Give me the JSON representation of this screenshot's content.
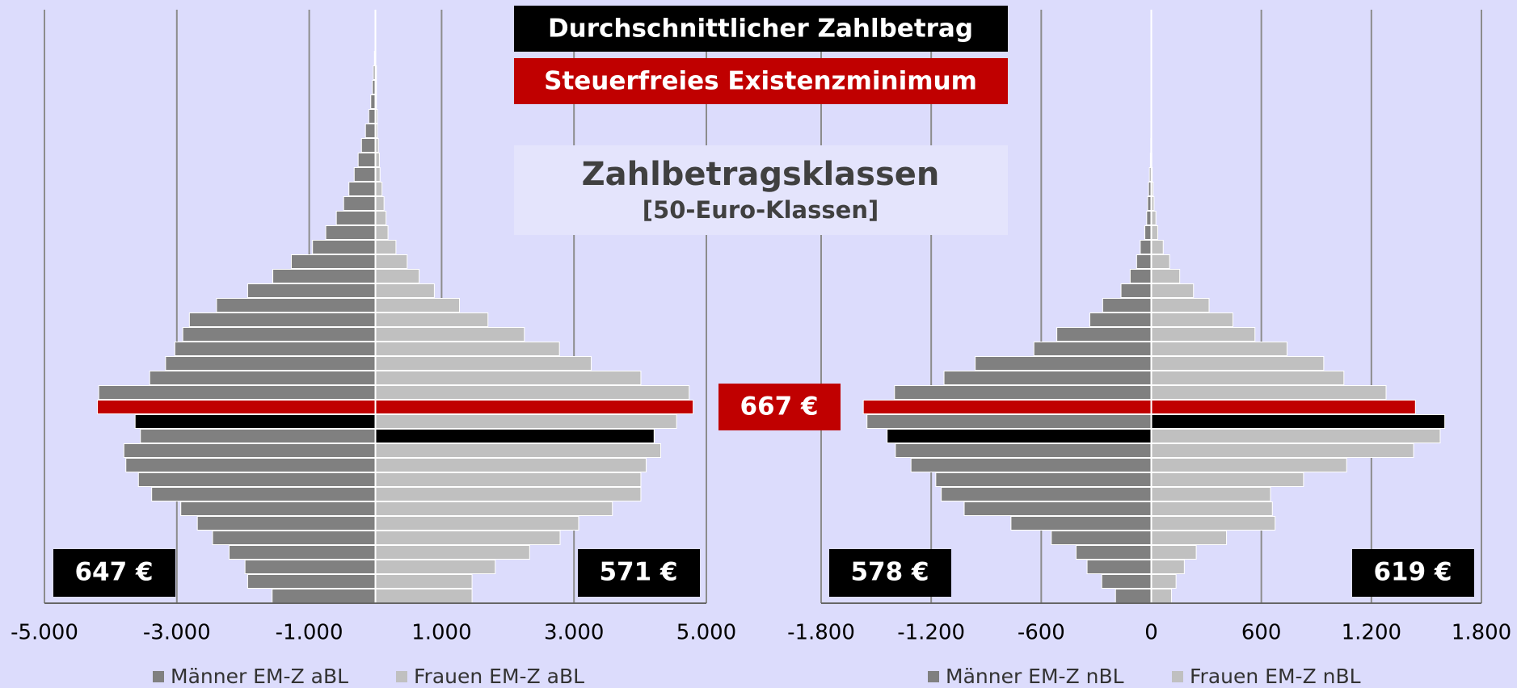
{
  "title": "Zahlbetragsklassen",
  "subtitle": "[50-Euro-Klassen]",
  "key_boxes": [
    {
      "label": "Durchschnittlicher Zahlbetrag",
      "color": "#000000"
    },
    {
      "label": "Steuerfreies Existenzminimum",
      "color": "#c00000"
    }
  ],
  "minimum_label": "667 €",
  "chart_data": [
    {
      "type": "bar",
      "orientation": "horizontal",
      "grid": true,
      "xlim": [
        -5000,
        5000
      ],
      "xticks": [
        {
          "value": -5000,
          "label": "-5.000"
        },
        {
          "value": -3000,
          "label": "-3.000"
        },
        {
          "value": -1000,
          "label": "-1.000"
        },
        {
          "value": 1000,
          "label": "1.000"
        },
        {
          "value": 3000,
          "label": "3.000"
        },
        {
          "value": 5000,
          "label": "5.000"
        }
      ],
      "annotations": [
        "647 €",
        "571 €"
      ],
      "series": [
        {
          "name": "Männer EM-Z aBL",
          "color": "#808080",
          "highlights": [
            {
              "index": 13,
              "color": "#c00000"
            },
            {
              "index": 12,
              "color": "#000000"
            }
          ],
          "values": [
            -1560,
            -1930,
            -1970,
            -2210,
            -2460,
            -2690,
            -2940,
            -3380,
            -3580,
            -3770,
            -3800,
            -3550,
            -3630,
            -4200,
            -4180,
            -3410,
            -3170,
            -3030,
            -2910,
            -2810,
            -2400,
            -1930,
            -1550,
            -1270,
            -950,
            -750,
            -590,
            -480,
            -400,
            -320,
            -260,
            -210,
            -150,
            -100,
            -70,
            -45,
            -30,
            -15
          ]
        },
        {
          "name": "Frauen EM-Z aBL",
          "color": "#c0c0c0",
          "highlights": [
            {
              "index": 13,
              "color": "#c00000"
            },
            {
              "index": 11,
              "color": "#000000"
            }
          ],
          "values": [
            1460,
            1460,
            1810,
            2330,
            2790,
            3070,
            3580,
            4010,
            4010,
            4090,
            4310,
            4210,
            4550,
            4800,
            4740,
            4010,
            3260,
            2780,
            2250,
            1700,
            1270,
            890,
            660,
            480,
            310,
            190,
            160,
            130,
            100,
            70,
            60,
            45,
            30,
            30,
            15,
            15,
            15,
            5
          ]
        }
      ]
    },
    {
      "type": "bar",
      "orientation": "horizontal",
      "grid": true,
      "xlim": [
        -1800,
        1800
      ],
      "xticks": [
        {
          "value": -1800,
          "label": "-1.800"
        },
        {
          "value": -1200,
          "label": "-1.200"
        },
        -600,
        0,
        600,
        {
          "value": 1200,
          "label": "1.200"
        },
        {
          "value": 1800,
          "label": "1.800"
        }
      ],
      "annotations": [
        "578 €",
        "619 €"
      ],
      "series": [
        {
          "name": "Männer EM-Z nBL",
          "color": "#808080",
          "highlights": [
            {
              "index": 13,
              "color": "#c00000"
            },
            {
              "index": 11,
              "color": "#000000"
            }
          ],
          "values": [
            -195,
            -270,
            -350,
            -410,
            -545,
            -765,
            -1020,
            -1145,
            -1175,
            -1310,
            -1395,
            -1440,
            -1550,
            -1570,
            -1400,
            -1130,
            -960,
            -640,
            -515,
            -335,
            -265,
            -165,
            -115,
            -80,
            -60,
            -35,
            -25,
            -20,
            -15,
            -10,
            -5,
            -3,
            -2,
            -2,
            -1,
            -1,
            -1,
            -1
          ]
        },
        {
          "name": "Frauen EM-Z nBL",
          "color": "#c0c0c0",
          "highlights": [
            {
              "index": 13,
              "color": "#c00000"
            },
            {
              "index": 12,
              "color": "#000000"
            }
          ],
          "values": [
            110,
            135,
            180,
            245,
            410,
            675,
            660,
            650,
            830,
            1065,
            1430,
            1575,
            1600,
            1440,
            1280,
            1050,
            940,
            740,
            565,
            445,
            315,
            230,
            155,
            100,
            65,
            35,
            25,
            15,
            10,
            5,
            3,
            2,
            2,
            1,
            1,
            1,
            1,
            1
          ]
        }
      ]
    }
  ]
}
